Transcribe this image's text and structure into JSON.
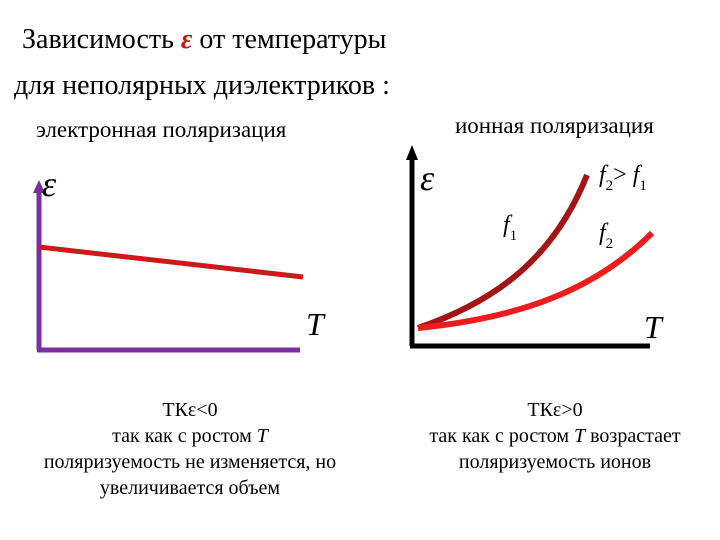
{
  "title": {
    "line1_before": "Зависимость ",
    "line1_symbol": "ε",
    "line1_after": " от температуры",
    "line2": "для неполярных диэлектриков :"
  },
  "left_panel": {
    "label": "электронная поляризация",
    "y_axis_label": "ε",
    "x_axis_label": "T",
    "caption": {
      "line1": "ТКε<0",
      "line2_prefix": "так как с ростом ",
      "line2_var": "T",
      "line3": "поляризуемость не изменяется, но",
      "line4": "увеличивается объем"
    }
  },
  "right_panel": {
    "label": "ионная поляризация",
    "y_axis_label": "ε",
    "x_axis_label": "T",
    "curve_labels": {
      "f1": "f",
      "f1_sub": "1",
      "f2": "f",
      "f2_sub": "2",
      "relation_f": "f",
      "relation_sub2": "2",
      "relation_op": "> ",
      "relation_f2": "f",
      "relation_sub1": "1"
    },
    "caption": {
      "line1": "ТКε>0",
      "line2_prefix": "так как с ростом ",
      "line2_var": "T",
      "line2_suffix": " возрастает",
      "line3": "поляризуемость ионов"
    }
  },
  "colors": {
    "left_axes": "#7a2fa0",
    "right_axes": "#000000",
    "left_line": "#cc1a1a",
    "curve_f1": "#a31515",
    "curve_f2": "#ee1c1c",
    "epsilon_title": "#cc1111"
  }
}
